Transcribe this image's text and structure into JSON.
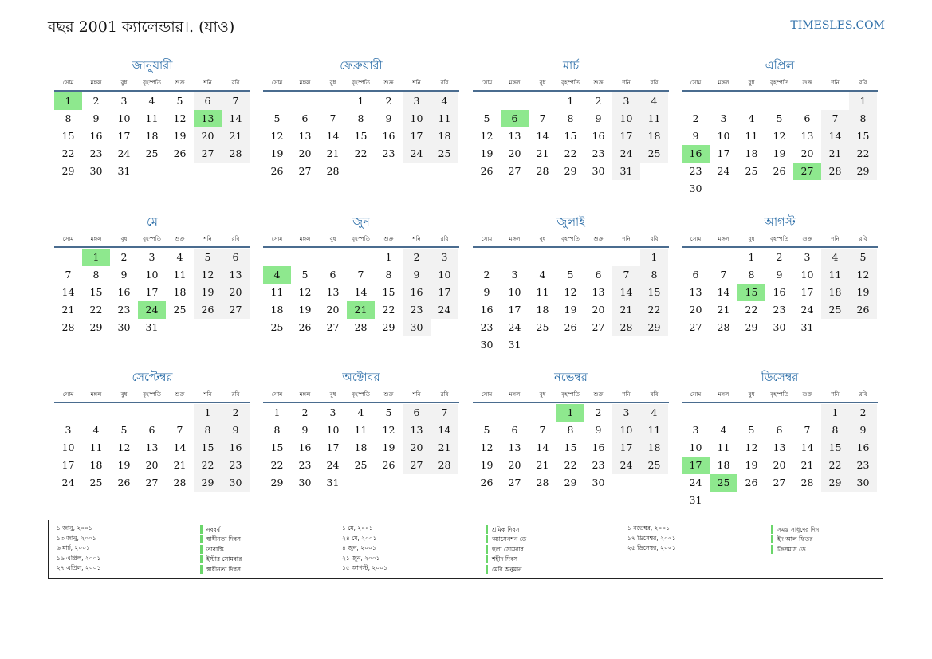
{
  "title": "বছর 2001 ক্যালেন্ডার।. (যাও)",
  "brand": "TIMESLES.COM",
  "weekdays": [
    "সোম",
    "মঙ্গল",
    "বুধ",
    "বৃহস্পতি",
    "শুক্র",
    "শনি",
    "রবি"
  ],
  "months": [
    {
      "name": "জানুয়ারী",
      "offset": 0,
      "days": 31,
      "highlight": [
        1,
        13
      ]
    },
    {
      "name": "ফেব্রুয়ারী",
      "offset": 3,
      "days": 28,
      "highlight": []
    },
    {
      "name": "মার্চ",
      "offset": 3,
      "days": 31,
      "highlight": [
        6
      ]
    },
    {
      "name": "এপ্রিল",
      "offset": 6,
      "days": 30,
      "highlight": [
        16,
        27
      ]
    },
    {
      "name": "মে",
      "offset": 1,
      "days": 31,
      "highlight": [
        1,
        24
      ]
    },
    {
      "name": "জুন",
      "offset": 4,
      "days": 30,
      "highlight": [
        4,
        21
      ]
    },
    {
      "name": "জুলাই",
      "offset": 6,
      "days": 31,
      "highlight": []
    },
    {
      "name": "আগস্ট",
      "offset": 2,
      "days": 31,
      "highlight": [
        15
      ]
    },
    {
      "name": "সেপ্টেম্বর",
      "offset": 5,
      "days": 30,
      "highlight": []
    },
    {
      "name": "অক্টোবর",
      "offset": 0,
      "days": 31,
      "highlight": []
    },
    {
      "name": "নভেম্বর",
      "offset": 3,
      "days": 30,
      "highlight": [
        1
      ]
    },
    {
      "name": "ডিসেম্বর",
      "offset": 5,
      "days": 31,
      "highlight": [
        17,
        25
      ]
    }
  ],
  "holidays": [
    [
      {
        "date": "১ জানু, ২০০১",
        "name": "নববর্ষ"
      },
      {
        "date": "১৩ জানু, ২০০১",
        "name": "স্বাধীনতা দিবস"
      },
      {
        "date": "৬ মার্চ, ২০০১",
        "name": "তাবাস্কি"
      },
      {
        "date": "১৬ এপ্রিল, ২০০১",
        "name": "ইস্টার সোমবার"
      },
      {
        "date": "২৭ এপ্রিল, ২০০১",
        "name": "স্বাধীনতা দিবস"
      }
    ],
    [
      {
        "date": "১ মে, ২০০১",
        "name": "শ্রমিক দিবস"
      },
      {
        "date": "২৪ মে, ২০০১",
        "name": "অ্যাসেনশন ডে"
      },
      {
        "date": "৪ জুন, ২০০১",
        "name": "হুলা সোমবার"
      },
      {
        "date": "২১ জুন, ২০০১",
        "name": "শহীদ দিবস"
      },
      {
        "date": "১৫ আগস্ট, ২০০১",
        "name": "মেরি অনুমান"
      }
    ],
    [
      {
        "date": "১ নভেম্বর, ২০০১",
        "name": "সমস্ত সাধুদের দিন"
      },
      {
        "date": "১৭ ডিসেম্বর, ২০০১",
        "name": "ইদ আল ফিতর"
      },
      {
        "date": "২৫ ডিসেম্বর, ২০০১",
        "name": "ক্রিসমাস ডে"
      }
    ]
  ],
  "colors": {
    "accent": "#2c6ea8",
    "highlight": "#8ee88e",
    "weekend": "#f2f2f2"
  }
}
